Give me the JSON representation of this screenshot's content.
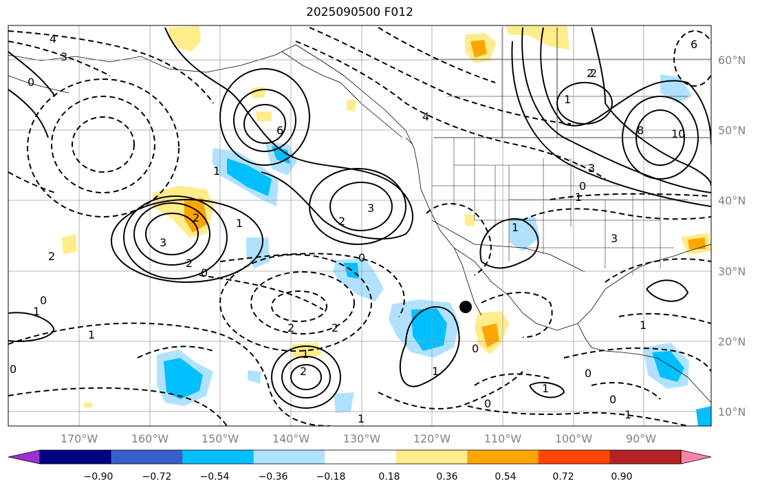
{
  "map": {
    "title": "2025090500 F012",
    "lon_labels": [
      "170°W",
      "160°W",
      "150°W",
      "140°W",
      "130°W",
      "120°W",
      "110°W",
      "100°W",
      "90°W"
    ],
    "lat_labels": [
      "60°N",
      "50°N",
      "40°N",
      "30°N",
      "20°N",
      "10°N"
    ],
    "contour_labels": [
      "4",
      "3",
      "0",
      "4",
      "2",
      "6",
      "3",
      "2",
      "1",
      "2",
      "3",
      "2",
      "1",
      "0",
      "0",
      "2",
      "2",
      "2",
      "1",
      "0",
      "0",
      "2",
      "1",
      "1",
      "0",
      "1",
      "1",
      "0",
      "0",
      "0",
      "1",
      "3",
      "1",
      "6",
      "8",
      "10",
      "2",
      "0",
      "1",
      "1",
      "1",
      "3",
      "1"
    ],
    "marker": "black-dot"
  },
  "colorbar": {
    "colors": [
      "#9b30d0",
      "#000080",
      "#3a5fcd",
      "#00bfff",
      "#b0e2ff",
      "#ffffff",
      "#ffec8b",
      "#ffa500",
      "#ff4500",
      "#b22222",
      "#ff82ab"
    ],
    "tick_labels": [
      "−0.90",
      "−0.72",
      "−0.54",
      "−0.36",
      "−0.18",
      "0.18",
      "0.36",
      "0.54",
      "0.72",
      "0.90"
    ]
  },
  "colors": {
    "grid": "#9e9e9e",
    "contour": "#000000",
    "tick_label": "#808080"
  }
}
